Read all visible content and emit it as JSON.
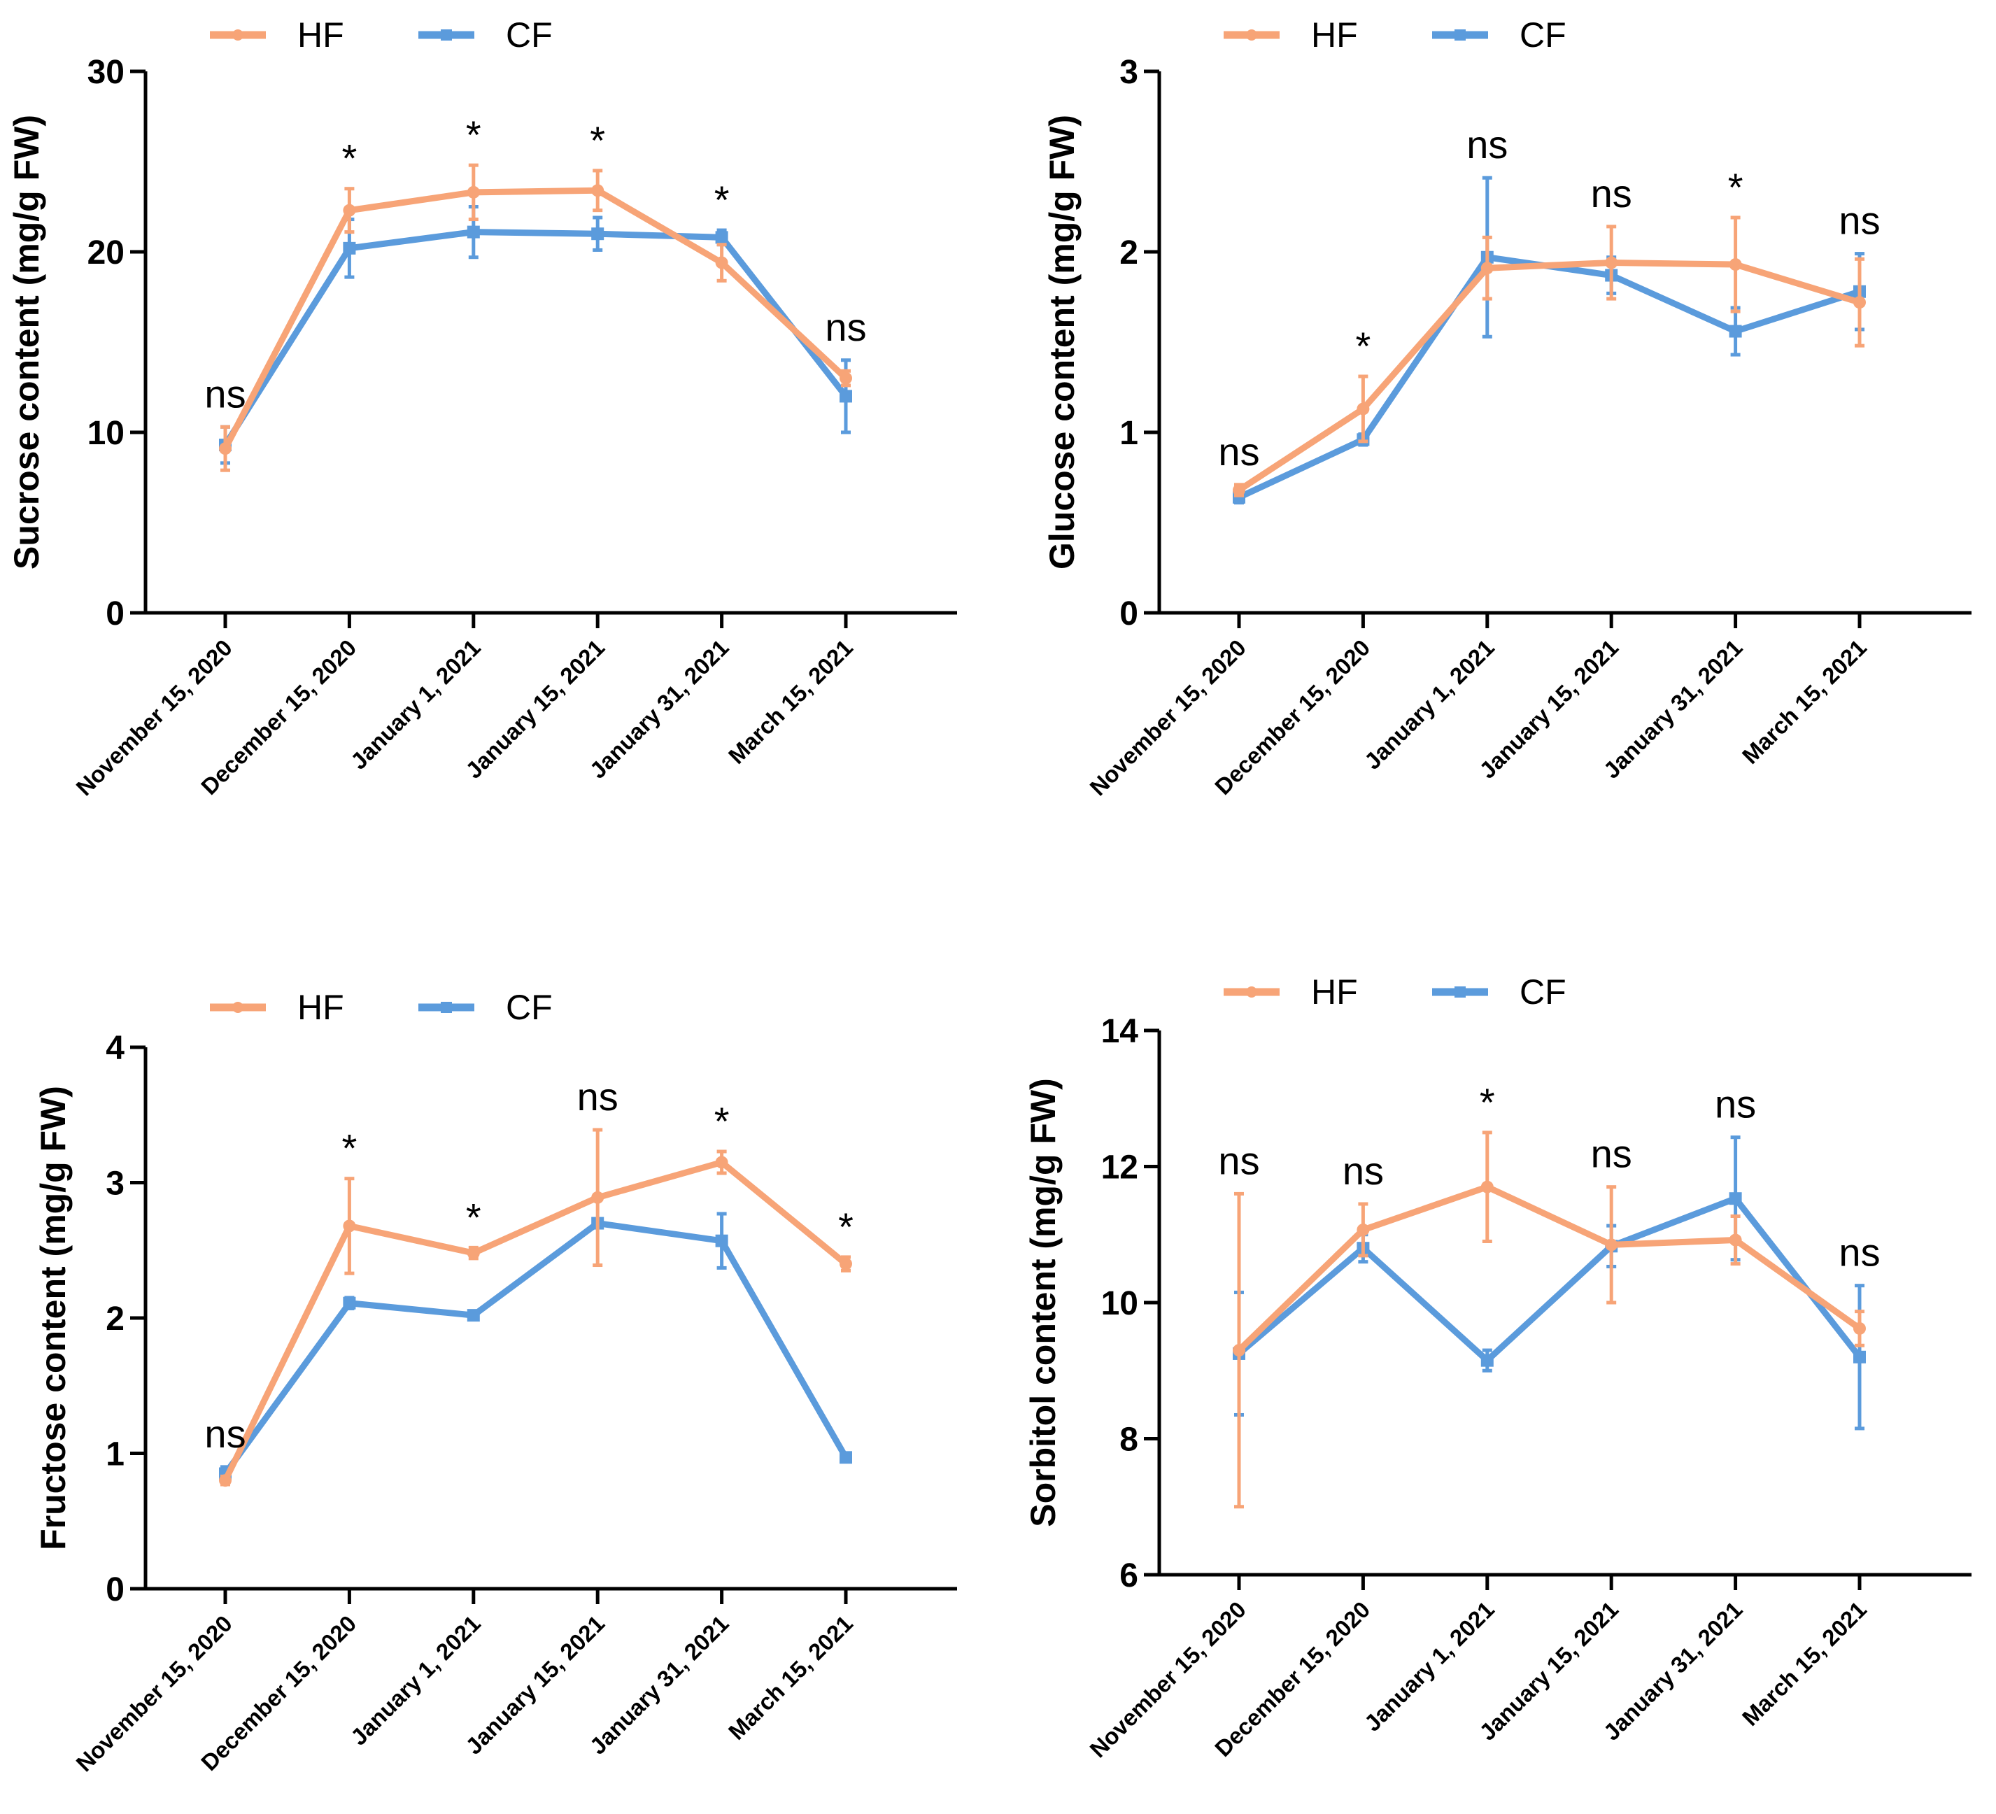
{
  "colors": {
    "HF": "#F7A477",
    "CF": "#5B9BDC",
    "axis": "#000000"
  },
  "chart_data": [
    {
      "type": "line",
      "ylabel": "Sucrose content (mg/g FW)",
      "ylim": [
        0,
        30
      ],
      "yticks": [
        0,
        10,
        20,
        30
      ],
      "categories": [
        "November 15, 2020",
        "December 15, 2020",
        "January 1, 2021",
        "January 15, 2021",
        "January 31, 2021",
        "March 15, 2021"
      ],
      "legend": [
        "HF",
        "CF"
      ],
      "series": [
        {
          "name": "HF",
          "values": [
            9.1,
            22.3,
            23.3,
            23.4,
            19.4,
            13.0
          ],
          "errors": [
            1.2,
            1.2,
            1.5,
            1.1,
            1.0,
            0.4
          ]
        },
        {
          "name": "CF",
          "values": [
            9.3,
            20.2,
            21.1,
            21.0,
            20.8,
            12.0
          ],
          "errors": [
            1.0,
            1.6,
            1.4,
            0.9,
            0.4,
            2.0
          ]
        }
      ],
      "significance": [
        "ns",
        "*",
        "*",
        "*",
        "*",
        "ns"
      ]
    },
    {
      "type": "line",
      "ylabel": "Glucose content (mg/g FW)",
      "ylim": [
        0,
        3
      ],
      "yticks": [
        0,
        1,
        2,
        3
      ],
      "categories": [
        "November 15, 2020",
        "December 15, 2020",
        "January 1, 2021",
        "January 15, 2021",
        "January 31, 2021",
        "March 15, 2021"
      ],
      "legend": [
        "HF",
        "CF"
      ],
      "series": [
        {
          "name": "HF",
          "values": [
            0.68,
            1.13,
            1.91,
            1.94,
            1.93,
            1.72
          ],
          "errors": [
            0.03,
            0.18,
            0.17,
            0.2,
            0.26,
            0.24
          ]
        },
        {
          "name": "CF",
          "values": [
            0.64,
            0.96,
            1.97,
            1.87,
            1.56,
            1.78
          ],
          "errors": [
            0.03,
            0.03,
            0.44,
            0.1,
            0.13,
            0.21
          ]
        }
      ],
      "significance": [
        "ns",
        "*",
        "ns",
        "ns",
        "*",
        "ns"
      ]
    },
    {
      "type": "line",
      "ylabel": "Fructose content (mg/g FW)",
      "ylim": [
        0,
        4
      ],
      "yticks": [
        0,
        1,
        2,
        3,
        4
      ],
      "categories": [
        "November 15, 2020",
        "December 15, 2020",
        "January 1, 2021",
        "January 15, 2021",
        "January 31, 2021",
        "March 15, 2021"
      ],
      "legend": [
        "HF",
        "CF"
      ],
      "series": [
        {
          "name": "HF",
          "values": [
            0.8,
            2.68,
            2.48,
            2.89,
            3.15,
            2.4
          ],
          "errors": [
            0.03,
            0.35,
            0.04,
            0.5,
            0.08,
            0.05
          ]
        },
        {
          "name": "CF",
          "values": [
            0.85,
            2.11,
            2.02,
            2.7,
            2.57,
            0.97
          ],
          "errors": [
            0.05,
            0.04,
            0.03,
            0.03,
            0.2,
            0.02
          ]
        }
      ],
      "significance": [
        "ns",
        "*",
        "*",
        "ns",
        "*",
        "*"
      ]
    },
    {
      "type": "line",
      "ylabel": "Sorbitol content (mg/g FW)",
      "ylim": [
        6,
        14
      ],
      "yticks": [
        6,
        8,
        10,
        12,
        14
      ],
      "categories": [
        "November 15, 2020",
        "December 15, 2020",
        "January 1, 2021",
        "January 15, 2021",
        "January 31, 2021",
        "March 15, 2021"
      ],
      "legend": [
        "HF",
        "CF"
      ],
      "series": [
        {
          "name": "HF",
          "values": [
            9.3,
            11.07,
            11.7,
            10.85,
            10.92,
            9.62
          ],
          "errors": [
            2.3,
            0.38,
            0.8,
            0.85,
            0.35,
            0.25
          ]
        },
        {
          "name": "CF",
          "values": [
            9.25,
            10.8,
            9.15,
            10.83,
            11.53,
            9.2
          ],
          "errors": [
            0.9,
            0.2,
            0.15,
            0.3,
            0.9,
            1.05
          ]
        }
      ],
      "significance": [
        "ns",
        "ns",
        "*",
        "ns",
        "ns",
        "ns"
      ]
    }
  ]
}
